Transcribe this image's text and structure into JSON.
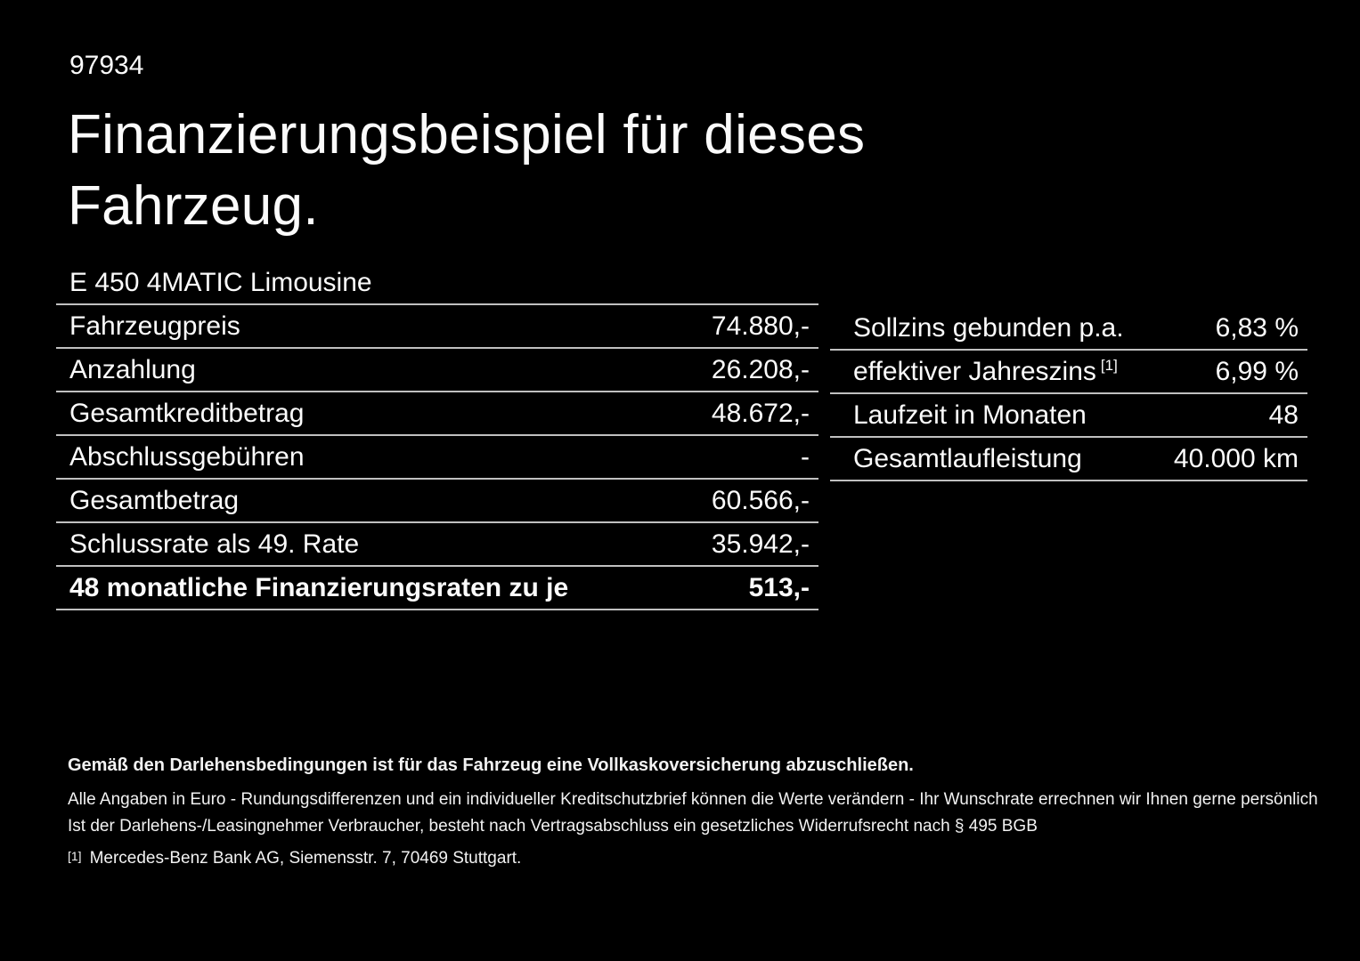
{
  "colors": {
    "background": "#000000",
    "text": "#fbfbfb",
    "divider": "#c0c0c0"
  },
  "header": {
    "ref_number": "97934",
    "title_line1": "Finanzierungsbeispiel für dieses",
    "title_line2": "Fahrzeug."
  },
  "vehicle": {
    "model": "E 450 4MATIC Limousine"
  },
  "finance_table": {
    "rows": [
      {
        "label": "Fahrzeugpreis",
        "value": "74.880,-"
      },
      {
        "label": "Anzahlung",
        "value": "26.208,-"
      },
      {
        "label": "Gesamtkreditbetrag",
        "value": "48.672,-"
      },
      {
        "label": "Abschlussgebühren",
        "value": "-"
      },
      {
        "label": "Gesamtbetrag",
        "value": "60.566,-"
      },
      {
        "label": "Schlussrate als 49. Rate",
        "value": "35.942,-"
      },
      {
        "label": "48 monatliche Finanzierungsraten zu je",
        "value": "513,-"
      }
    ]
  },
  "conditions_table": {
    "rows": [
      {
        "label": "Sollzins gebunden p.a.",
        "sup": "",
        "value": "6,83 %"
      },
      {
        "label": "effektiver Jahreszins",
        "sup": "[1]",
        "value": "6,99 %"
      },
      {
        "label": "Laufzeit in Monaten",
        "sup": "",
        "value": "48"
      },
      {
        "label": "Gesamtlaufleistung",
        "sup": "",
        "value": "40.000 km"
      }
    ]
  },
  "footer": {
    "bold_note": "Gemäß den Darlehensbedingungen ist für das Fahrzeug eine Vollkaskoversicherung abzuschließen.",
    "note1": "Alle Angaben in Euro - Rundungsdifferenzen und ein individueller Kreditschutzbrief können die Werte verändern - Ihr Wunschrate errechnen wir Ihnen gerne persönlich",
    "note2": "Ist der Darlehens-/Leasingnehmer Verbraucher, besteht nach Vertragsabschluss ein gesetzliches Widerrufsrecht nach § 495 BGB",
    "footnote_marker": "[1]",
    "footnote_text": "Mercedes-Benz Bank AG, Siemensstr. 7, 70469 Stuttgart."
  }
}
